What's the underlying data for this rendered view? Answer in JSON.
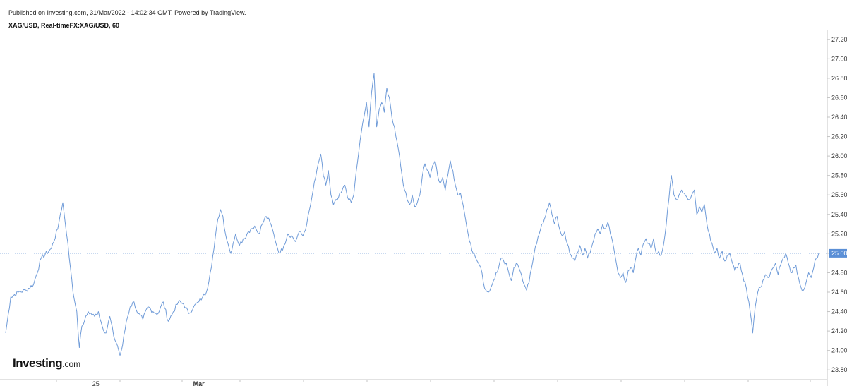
{
  "header": {
    "published": "Published on Investing.com, 31/Mar/2022 - 14:02:34 GMT, Powered by TradingView.",
    "symbol": "XAG/USD, Real-timeFX:XAG/USD, 60"
  },
  "logo": {
    "brand": "Investing",
    "suffix": ".com"
  },
  "colors": {
    "line": "#6f9bd8",
    "current_line": "#6f9bd8",
    "badge": "#5b8fd6",
    "axis": "#c4c4c4",
    "tick_text": "#333333"
  },
  "chart_data": {
    "type": "line",
    "title": "XAG/USD, Real-timeFX:XAG/USD, 60",
    "xlabel": "",
    "ylabel": "",
    "ylim": [
      23.7,
      27.3
    ],
    "y_ticks": [
      "27.20",
      "27.00",
      "26.80",
      "26.60",
      "26.40",
      "26.20",
      "26.00",
      "25.80",
      "25.60",
      "25.40",
      "25.20",
      "25.00",
      "24.80",
      "24.60",
      "24.40",
      "24.20",
      "24.00",
      "23.80"
    ],
    "x_tick_labels": [
      {
        "label": "25",
        "index": 71
      },
      {
        "label": "Mar",
        "index": 152
      }
    ],
    "current_value": "25.00",
    "anchors": [
      [
        0,
        24.18
      ],
      [
        4,
        24.55
      ],
      [
        10,
        24.6
      ],
      [
        16,
        24.62
      ],
      [
        22,
        24.68
      ],
      [
        28,
        24.95
      ],
      [
        36,
        25.05
      ],
      [
        41,
        25.25
      ],
      [
        43,
        25.4
      ],
      [
        45,
        25.52
      ],
      [
        47,
        25.3
      ],
      [
        49,
        25.1
      ],
      [
        51,
        24.85
      ],
      [
        53,
        24.6
      ],
      [
        56,
        24.4
      ],
      [
        58,
        24.03
      ],
      [
        60,
        24.25
      ],
      [
        62,
        24.3
      ],
      [
        65,
        24.4
      ],
      [
        70,
        24.35
      ],
      [
        73,
        24.4
      ],
      [
        76,
        24.25
      ],
      [
        79,
        24.18
      ],
      [
        82,
        24.35
      ],
      [
        85,
        24.15
      ],
      [
        88,
        24.05
      ],
      [
        90,
        23.95
      ],
      [
        92,
        24.05
      ],
      [
        95,
        24.3
      ],
      [
        98,
        24.45
      ],
      [
        101,
        24.5
      ],
      [
        104,
        24.38
      ],
      [
        108,
        24.32
      ],
      [
        112,
        24.45
      ],
      [
        116,
        24.4
      ],
      [
        120,
        24.38
      ],
      [
        124,
        24.5
      ],
      [
        128,
        24.3
      ],
      [
        132,
        24.4
      ],
      [
        136,
        24.5
      ],
      [
        140,
        24.48
      ],
      [
        144,
        24.38
      ],
      [
        148,
        24.45
      ],
      [
        152,
        24.5
      ],
      [
        155,
        24.55
      ],
      [
        158,
        24.6
      ],
      [
        161,
        24.8
      ],
      [
        164,
        25.05
      ],
      [
        167,
        25.35
      ],
      [
        169,
        25.45
      ],
      [
        171,
        25.38
      ],
      [
        173,
        25.2
      ],
      [
        175,
        25.1
      ],
      [
        177,
        25.0
      ],
      [
        179,
        25.1
      ],
      [
        181,
        25.2
      ],
      [
        184,
        25.08
      ],
      [
        187,
        25.15
      ],
      [
        190,
        25.2
      ],
      [
        193,
        25.25
      ],
      [
        196,
        25.28
      ],
      [
        199,
        25.2
      ],
      [
        202,
        25.3
      ],
      [
        205,
        25.38
      ],
      [
        208,
        25.32
      ],
      [
        211,
        25.2
      ],
      [
        214,
        25.05
      ],
      [
        216,
        25.0
      ],
      [
        219,
        25.08
      ],
      [
        222,
        25.2
      ],
      [
        225,
        25.18
      ],
      [
        228,
        25.12
      ],
      [
        231,
        25.22
      ],
      [
        234,
        25.18
      ],
      [
        237,
        25.3
      ],
      [
        240,
        25.5
      ],
      [
        242,
        25.65
      ],
      [
        244,
        25.78
      ],
      [
        246,
        25.92
      ],
      [
        248,
        26.02
      ],
      [
        250,
        25.8
      ],
      [
        252,
        25.7
      ],
      [
        254,
        25.85
      ],
      [
        256,
        25.6
      ],
      [
        258,
        25.5
      ],
      [
        261,
        25.55
      ],
      [
        264,
        25.62
      ],
      [
        267,
        25.7
      ],
      [
        270,
        25.55
      ],
      [
        272,
        25.52
      ],
      [
        274,
        25.6
      ],
      [
        276,
        25.85
      ],
      [
        278,
        26.05
      ],
      [
        280,
        26.25
      ],
      [
        282,
        26.4
      ],
      [
        284,
        26.55
      ],
      [
        286,
        26.3
      ],
      [
        288,
        26.65
      ],
      [
        290,
        26.85
      ],
      [
        292,
        26.3
      ],
      [
        294,
        26.48
      ],
      [
        296,
        26.55
      ],
      [
        298,
        26.45
      ],
      [
        300,
        26.7
      ],
      [
        302,
        26.6
      ],
      [
        304,
        26.4
      ],
      [
        306,
        26.3
      ],
      [
        308,
        26.15
      ],
      [
        310,
        26.0
      ],
      [
        312,
        25.8
      ],
      [
        314,
        25.65
      ],
      [
        316,
        25.55
      ],
      [
        318,
        25.5
      ],
      [
        320,
        25.6
      ],
      [
        322,
        25.48
      ],
      [
        324,
        25.52
      ],
      [
        326,
        25.6
      ],
      [
        328,
        25.8
      ],
      [
        330,
        25.92
      ],
      [
        332,
        25.85
      ],
      [
        334,
        25.78
      ],
      [
        336,
        25.9
      ],
      [
        338,
        25.95
      ],
      [
        340,
        25.8
      ],
      [
        342,
        25.72
      ],
      [
        344,
        25.78
      ],
      [
        346,
        25.65
      ],
      [
        348,
        25.8
      ],
      [
        350,
        25.95
      ],
      [
        352,
        25.85
      ],
      [
        354,
        25.7
      ],
      [
        356,
        25.6
      ],
      [
        358,
        25.62
      ],
      [
        360,
        25.5
      ],
      [
        362,
        25.35
      ],
      [
        364,
        25.2
      ],
      [
        366,
        25.1
      ],
      [
        368,
        25.0
      ],
      [
        370,
        24.95
      ],
      [
        372,
        24.9
      ],
      [
        374,
        24.85
      ],
      [
        376,
        24.7
      ],
      [
        378,
        24.62
      ],
      [
        380,
        24.6
      ],
      [
        382,
        24.65
      ],
      [
        384,
        24.72
      ],
      [
        386,
        24.8
      ],
      [
        388,
        24.85
      ],
      [
        390,
        24.95
      ],
      [
        392,
        24.92
      ],
      [
        394,
        24.9
      ],
      [
        396,
        24.8
      ],
      [
        398,
        24.72
      ],
      [
        400,
        24.85
      ],
      [
        402,
        24.9
      ],
      [
        404,
        24.85
      ],
      [
        406,
        24.78
      ],
      [
        408,
        24.68
      ],
      [
        410,
        24.62
      ],
      [
        412,
        24.7
      ],
      [
        414,
        24.85
      ],
      [
        416,
        25.0
      ],
      [
        418,
        25.1
      ],
      [
        420,
        25.2
      ],
      [
        422,
        25.3
      ],
      [
        424,
        25.35
      ],
      [
        426,
        25.45
      ],
      [
        428,
        25.52
      ],
      [
        430,
        25.4
      ],
      [
        432,
        25.3
      ],
      [
        434,
        25.38
      ],
      [
        436,
        25.25
      ],
      [
        438,
        25.18
      ],
      [
        440,
        25.22
      ],
      [
        442,
        25.1
      ],
      [
        444,
        25.0
      ],
      [
        446,
        24.95
      ],
      [
        448,
        24.92
      ],
      [
        450,
        25.0
      ],
      [
        452,
        25.08
      ],
      [
        454,
        24.98
      ],
      [
        456,
        25.05
      ],
      [
        458,
        24.95
      ],
      [
        460,
        25.0
      ],
      [
        462,
        25.1
      ],
      [
        464,
        25.2
      ],
      [
        466,
        25.25
      ],
      [
        468,
        25.2
      ],
      [
        470,
        25.3
      ],
      [
        472,
        25.25
      ],
      [
        474,
        25.32
      ],
      [
        476,
        25.2
      ],
      [
        478,
        25.1
      ],
      [
        480,
        24.95
      ],
      [
        482,
        24.8
      ],
      [
        484,
        24.75
      ],
      [
        486,
        24.8
      ],
      [
        488,
        24.7
      ],
      [
        490,
        24.82
      ],
      [
        492,
        24.85
      ],
      [
        494,
        24.8
      ],
      [
        496,
        24.95
      ],
      [
        498,
        25.05
      ],
      [
        500,
        24.98
      ],
      [
        502,
        25.1
      ],
      [
        504,
        25.15
      ],
      [
        506,
        25.1
      ],
      [
        508,
        25.05
      ],
      [
        510,
        25.15
      ],
      [
        512,
        25.0
      ],
      [
        514,
        25.02
      ],
      [
        516,
        24.98
      ],
      [
        518,
        25.1
      ],
      [
        520,
        25.3
      ],
      [
        522,
        25.55
      ],
      [
        524,
        25.8
      ],
      [
        526,
        25.6
      ],
      [
        528,
        25.55
      ],
      [
        530,
        25.6
      ],
      [
        532,
        25.65
      ],
      [
        534,
        25.62
      ],
      [
        536,
        25.58
      ],
      [
        538,
        25.55
      ],
      [
        540,
        25.6
      ],
      [
        542,
        25.65
      ],
      [
        544,
        25.4
      ],
      [
        546,
        25.48
      ],
      [
        548,
        25.42
      ],
      [
        550,
        25.5
      ],
      [
        552,
        25.3
      ],
      [
        554,
        25.2
      ],
      [
        556,
        25.1
      ],
      [
        558,
        25.0
      ],
      [
        560,
        25.05
      ],
      [
        562,
        24.95
      ],
      [
        564,
        25.02
      ],
      [
        566,
        24.92
      ],
      [
        568,
        24.98
      ],
      [
        570,
        25.0
      ],
      [
        572,
        24.9
      ],
      [
        574,
        24.82
      ],
      [
        576,
        24.85
      ],
      [
        578,
        24.9
      ],
      [
        580,
        24.78
      ],
      [
        582,
        24.7
      ],
      [
        584,
        24.55
      ],
      [
        586,
        24.4
      ],
      [
        588,
        24.18
      ],
      [
        590,
        24.45
      ],
      [
        592,
        24.6
      ],
      [
        594,
        24.65
      ],
      [
        596,
        24.72
      ],
      [
        598,
        24.78
      ],
      [
        600,
        24.75
      ],
      [
        602,
        24.8
      ],
      [
        604,
        24.85
      ],
      [
        606,
        24.9
      ],
      [
        608,
        24.78
      ],
      [
        610,
        24.88
      ],
      [
        612,
        24.95
      ],
      [
        614,
        25.0
      ],
      [
        616,
        24.9
      ],
      [
        618,
        24.8
      ],
      [
        620,
        24.85
      ],
      [
        622,
        24.88
      ],
      [
        624,
        24.75
      ],
      [
        626,
        24.65
      ],
      [
        628,
        24.62
      ],
      [
        630,
        24.7
      ],
      [
        632,
        24.8
      ],
      [
        634,
        24.75
      ],
      [
        636,
        24.85
      ],
      [
        638,
        24.95
      ],
      [
        640,
        25.0
      ]
    ]
  }
}
